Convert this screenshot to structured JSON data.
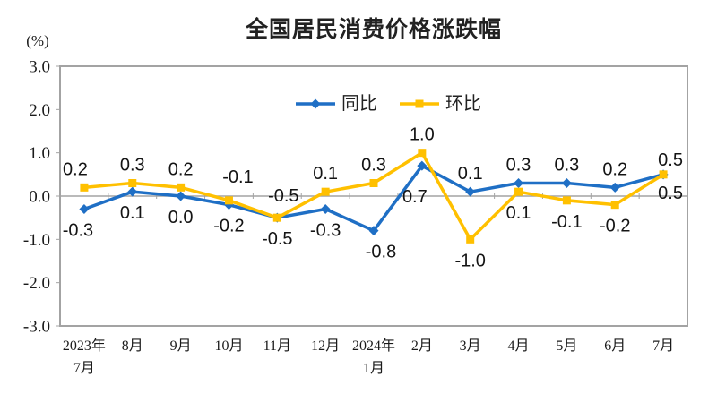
{
  "chart_data": {
    "type": "line",
    "title": "全国居民消费价格涨跌幅",
    "unit_label": "(%)",
    "categories": [
      "2023年7月",
      "8月",
      "9月",
      "10月",
      "11月",
      "12月",
      "2024年1月",
      "2月",
      "3月",
      "4月",
      "5月",
      "6月",
      "7月"
    ],
    "tick_labels": [
      [
        "2023年",
        "7月"
      ],
      [
        "8月"
      ],
      [
        "9月"
      ],
      [
        "10月"
      ],
      [
        "11月"
      ],
      [
        "12月"
      ],
      [
        "2024年",
        "1月"
      ],
      [
        "2月"
      ],
      [
        "3月"
      ],
      [
        "4月"
      ],
      [
        "5月"
      ],
      [
        "6月"
      ],
      [
        "7月"
      ]
    ],
    "y_ticks": [
      "3.0",
      "2.0",
      "1.0",
      "0.0",
      "-1.0",
      "-2.0",
      "-3.0"
    ],
    "ylim": [
      -3.0,
      3.0
    ],
    "grid": "zero-line-only",
    "legend_position": "top-center-inside",
    "series": [
      {
        "id": "tongbi",
        "name": "同比",
        "marker": "diamond",
        "color": "#1F6FC5",
        "values": [
          -0.3,
          0.1,
          0.0,
          -0.2,
          -0.5,
          -0.3,
          -0.8,
          0.7,
          0.1,
          0.3,
          0.3,
          0.2,
          0.5
        ],
        "label_sides": [
          "below",
          "below",
          "below",
          "below",
          "below",
          "below",
          "below",
          "below",
          "above",
          "above",
          "above",
          "above",
          "above"
        ]
      },
      {
        "id": "huanbi",
        "name": "环比",
        "marker": "square",
        "color": "#FFC000",
        "values": [
          0.2,
          0.3,
          0.2,
          -0.1,
          -0.5,
          0.1,
          0.3,
          1.0,
          -1.0,
          0.1,
          -0.1,
          -0.2,
          0.5
        ],
        "label_sides": [
          "above",
          "above",
          "above",
          "above",
          "above",
          "above",
          "above",
          "above",
          "below",
          "below",
          "below",
          "below",
          "below"
        ]
      }
    ],
    "colors": {
      "axis": "#A3A3A3",
      "text": "#1A1A1A"
    }
  }
}
